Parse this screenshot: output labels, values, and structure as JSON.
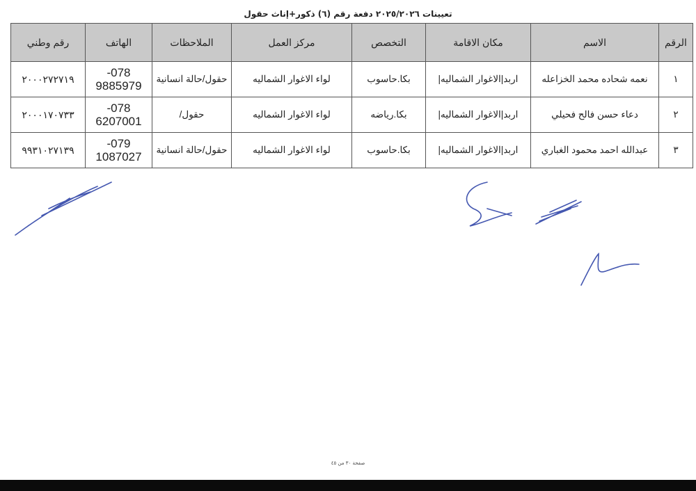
{
  "title": "تعيينات ٢٠٢٥/٢٠٢٦ دفعة رقم (٦) ذكور+إناث حقول",
  "table": {
    "headers": [
      "الرقم",
      "الاسم",
      "مكان الاقامة",
      "التخصص",
      "مركز العمل",
      "الملاحظات",
      "الهاتف",
      "رقم وطني"
    ],
    "rows": [
      {
        "num": "١",
        "name": "نعمه شحاده محمد الخزاعله",
        "residence": "اربد|الاغوار الشماليه|",
        "major": "بكا.حاسوب",
        "work": "لواء الاغوار الشماليه",
        "notes": "حقول/حالة انسانية",
        "phone_a": "078-",
        "phone_b": "9885979",
        "nid": "٢٠٠٠٢٧٢٧١٩"
      },
      {
        "num": "٢",
        "name": "دعاء حسن فالح فحيلي",
        "residence": "اربد|الاغوار الشماليه|",
        "major": "بكا.رياضه",
        "work": "لواء الاغوار الشماليه",
        "notes": "حقول/",
        "phone_a": "078-",
        "phone_b": "6207001",
        "nid": "٢٠٠٠١٧٠٧٣٣"
      },
      {
        "num": "٣",
        "name": "عبدالله احمد محمود الغباري",
        "residence": "اربد|الاغوار الشماليه|",
        "major": "بكا.حاسوب",
        "work": "لواء الاغوار الشماليه",
        "notes": "حقول/حالة انسانية",
        "phone_a": "079-",
        "phone_b": "1087027",
        "nid": "٩٩٣١٠٢٧١٣٩"
      }
    ]
  },
  "footer": "صفحة ٣٠ من ٤٥",
  "colors": {
    "header_bg": "#c9c9c9",
    "ink": "#3b4fa8"
  }
}
